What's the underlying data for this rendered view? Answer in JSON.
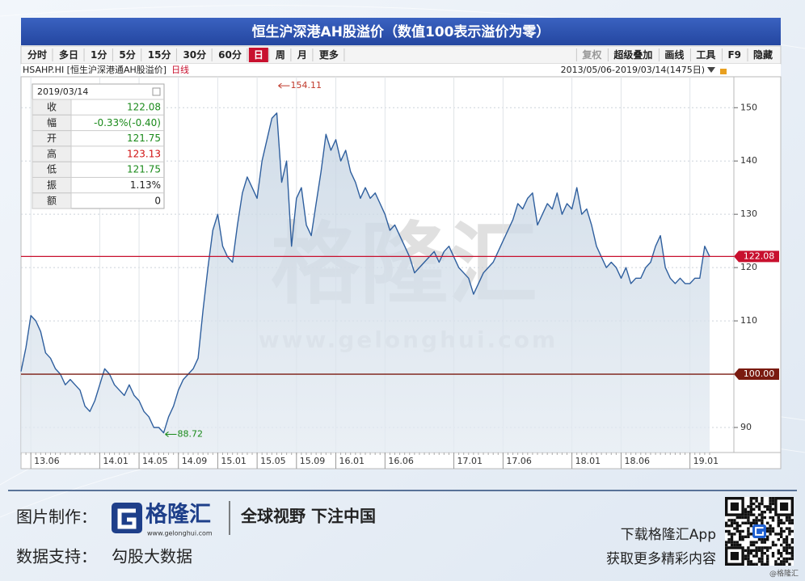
{
  "header": {
    "title": "恒生沪深港AH股溢价（数值100表示溢价为零）"
  },
  "toolbar": {
    "left": [
      {
        "text": "分时"
      },
      {
        "text": "多日"
      },
      {
        "text": "1分"
      },
      {
        "text": "5分"
      },
      {
        "text": "15分"
      },
      {
        "text": "30分"
      },
      {
        "text": "60分"
      },
      {
        "text": "日",
        "selected": true
      },
      {
        "text": "周"
      },
      {
        "text": "月"
      },
      {
        "text": "更多"
      }
    ],
    "right": [
      {
        "text": "复权",
        "disabled": true
      },
      {
        "text": "超级叠加"
      },
      {
        "text": "画线"
      },
      {
        "text": "工具"
      },
      {
        "text": "F9"
      },
      {
        "text": "隐藏"
      }
    ]
  },
  "info_bar": {
    "symbol": "HSAHP.HI [恒生沪深港通AH股溢价]",
    "period": "日线",
    "range": "2013/05/06-2019/03/14(1475日)"
  },
  "info_panel": {
    "date": "2019/03/14",
    "rows": [
      {
        "label": "收",
        "value": 122.08,
        "color": "#1a8a1a"
      },
      {
        "label": "幅",
        "value": "-0.33%(-0.40)",
        "color": "#1a8a1a"
      },
      {
        "label": "开",
        "value": 121.75,
        "color": "#1a8a1a"
      },
      {
        "label": "高",
        "value": 123.13,
        "color": "#d01010"
      },
      {
        "label": "低",
        "value": 121.75,
        "color": "#1a8a1a"
      },
      {
        "label": "振",
        "value": "1.13%",
        "color": "#222222"
      },
      {
        "label": "额",
        "value": 0,
        "color": "#222222"
      }
    ]
  },
  "watermark": {
    "logo": "格隆汇",
    "url": "www.gelonghui.com"
  },
  "chart_data": {
    "type": "line",
    "color": "#2f5f9e",
    "fill": "#c9d6e3",
    "categories": [
      null,
      null,
      "13.06",
      null,
      null,
      null,
      null,
      null,
      null,
      null,
      null,
      null,
      null,
      null,
      null,
      null,
      "14.01",
      null,
      null,
      null,
      null,
      null,
      null,
      null,
      "14.05",
      null,
      null,
      null,
      null,
      null,
      null,
      null,
      "14.09",
      null,
      null,
      null,
      null,
      null,
      null,
      null,
      "15.01",
      null,
      null,
      null,
      null,
      null,
      null,
      null,
      "15.05",
      null,
      null,
      null,
      null,
      null,
      null,
      null,
      "15.09",
      null,
      null,
      null,
      null,
      null,
      null,
      null,
      "16.01",
      null,
      null,
      null,
      null,
      null,
      null,
      null,
      null,
      null,
      "16.06",
      null,
      null,
      null,
      null,
      null,
      null,
      null,
      null,
      null,
      null,
      null,
      null,
      null,
      "17.01",
      null,
      null,
      null,
      null,
      null,
      null,
      null,
      null,
      null,
      "17.06",
      null,
      null,
      null,
      null,
      null,
      null,
      null,
      null,
      null,
      null,
      null,
      null,
      null,
      "18.01",
      null,
      null,
      null,
      null,
      null,
      null,
      null,
      null,
      null,
      "18.06",
      null,
      null,
      null,
      null,
      null,
      null,
      null,
      null,
      null,
      null,
      null,
      null,
      null,
      "19.01",
      null,
      null,
      null,
      null
    ],
    "values": [
      100.5,
      105,
      111,
      110,
      108,
      104,
      103,
      101,
      100,
      98,
      99,
      98,
      97,
      94,
      93,
      95,
      98,
      101,
      100,
      98,
      97,
      96,
      98,
      96,
      95,
      93,
      92,
      90,
      90,
      89,
      92,
      94,
      97,
      99,
      100,
      101,
      103,
      112,
      120,
      127,
      130,
      124,
      122,
      121,
      128,
      134,
      137,
      135,
      133,
      140,
      144,
      148,
      149,
      136,
      140,
      124,
      133,
      135,
      128,
      126,
      132,
      138,
      145,
      142,
      144,
      140,
      142,
      138,
      136,
      133,
      135,
      133,
      134,
      132,
      130,
      127,
      128,
      126,
      124,
      122,
      119,
      120,
      121,
      122,
      123,
      121,
      123,
      124,
      122,
      120,
      119,
      118,
      115,
      117,
      119,
      120,
      121,
      123,
      125,
      127,
      129,
      132,
      131,
      133,
      134,
      128,
      130,
      132,
      131,
      134,
      130,
      132,
      131,
      135,
      130,
      131,
      128,
      124,
      122,
      120,
      121,
      120,
      118,
      120,
      117,
      118,
      118,
      120,
      121,
      124,
      126,
      120,
      118,
      117,
      118,
      117,
      117,
      118,
      118,
      124,
      122.08
    ],
    "ylim": [
      85.3,
      155.8
    ],
    "yticks": [
      90,
      110,
      120,
      130,
      140,
      150
    ],
    "grid": true,
    "reference_lines": [
      {
        "value": 122.08,
        "label": "122.08",
        "color": "#c8102e"
      },
      {
        "value": 100,
        "label": "100.00",
        "color": "#7a1a10"
      }
    ],
    "annotations": {
      "high": {
        "value": 154.11,
        "color": "#c0392b"
      },
      "low": {
        "value": 88.72,
        "color": "#1a8a1a"
      }
    }
  },
  "footer": {
    "made_by_label": "图片制作：",
    "logo_text": "格隆汇",
    "logo_url": "www.gelonghui.com",
    "slogan": "全球视野 下注中国",
    "data_label": "数据支持：",
    "data_source": "勾股大数据",
    "app_line1": "下载格隆汇App",
    "app_line2": "获取更多精彩内容",
    "handle": "@格隆汇"
  }
}
